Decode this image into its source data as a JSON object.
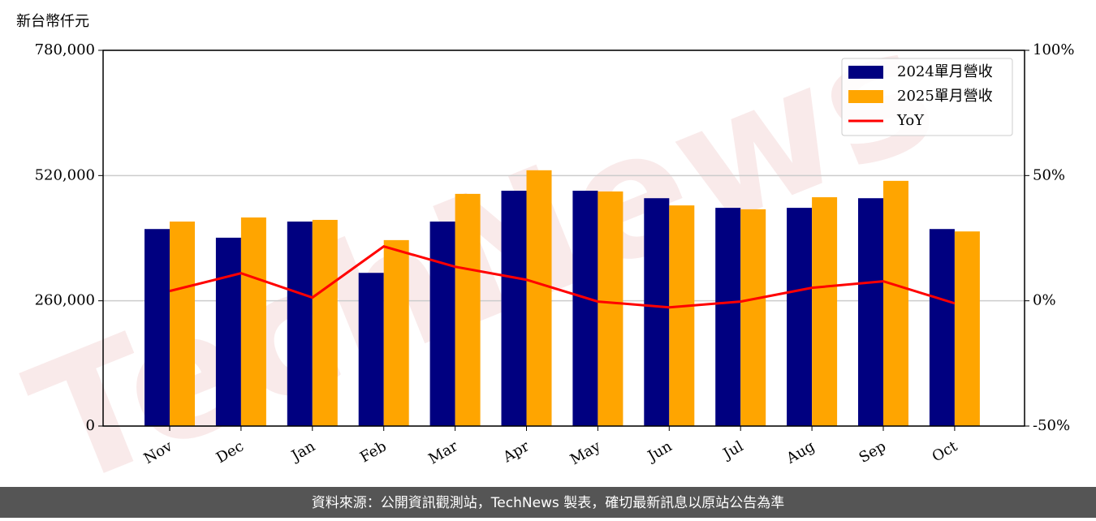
{
  "chart_data": {
    "type": "bar_line",
    "y_label": "新台幣仟元",
    "watermark": "TechNews",
    "footer": "資料來源：公開資訊觀測站，TechNews 製表，確切最新訊息以原站公告為準",
    "categories": [
      "Nov",
      "Dec",
      "Jan",
      "Feb",
      "Mar",
      "Apr",
      "May",
      "Jun",
      "Jul",
      "Aug",
      "Sep",
      "Oct"
    ],
    "series": [
      {
        "name": "2024單月營收",
        "color": "#000080",
        "values": [
          409000,
          391000,
          424500,
          318000,
          424500,
          488500,
          488500,
          473000,
          453000,
          453000,
          473000,
          409000
        ]
      },
      {
        "name": "2025單月營收",
        "color": "#ffa500",
        "values": [
          424500,
          433000,
          428000,
          386000,
          482000,
          531000,
          487000,
          458000,
          450000,
          475000,
          509000,
          404000
        ]
      },
      {
        "name": "YoY",
        "color": "#ff0000",
        "axis": "y2",
        "values": [
          3.9,
          11,
          1.3,
          21.7,
          13.6,
          8.4,
          -0.3,
          -2.6,
          -0.3,
          5.2,
          7.8,
          -1
        ]
      }
    ],
    "ylim": [
      0,
      780000
    ],
    "yticks": [
      0,
      {
        "value": 260000,
        "label": "260,000"
      },
      {
        "value": 520000,
        "label": "520,000"
      },
      {
        "value": 780000,
        "label": "780,000"
      }
    ],
    "y2lim": [
      -50,
      100
    ],
    "y2ticks": [
      {
        "value": -50,
        "label": "-50%"
      },
      {
        "value": 0,
        "label": "0%"
      },
      {
        "value": 50,
        "label": "50%"
      },
      {
        "value": 100,
        "label": "100%"
      }
    ],
    "grid": true,
    "legend": "upper right"
  }
}
